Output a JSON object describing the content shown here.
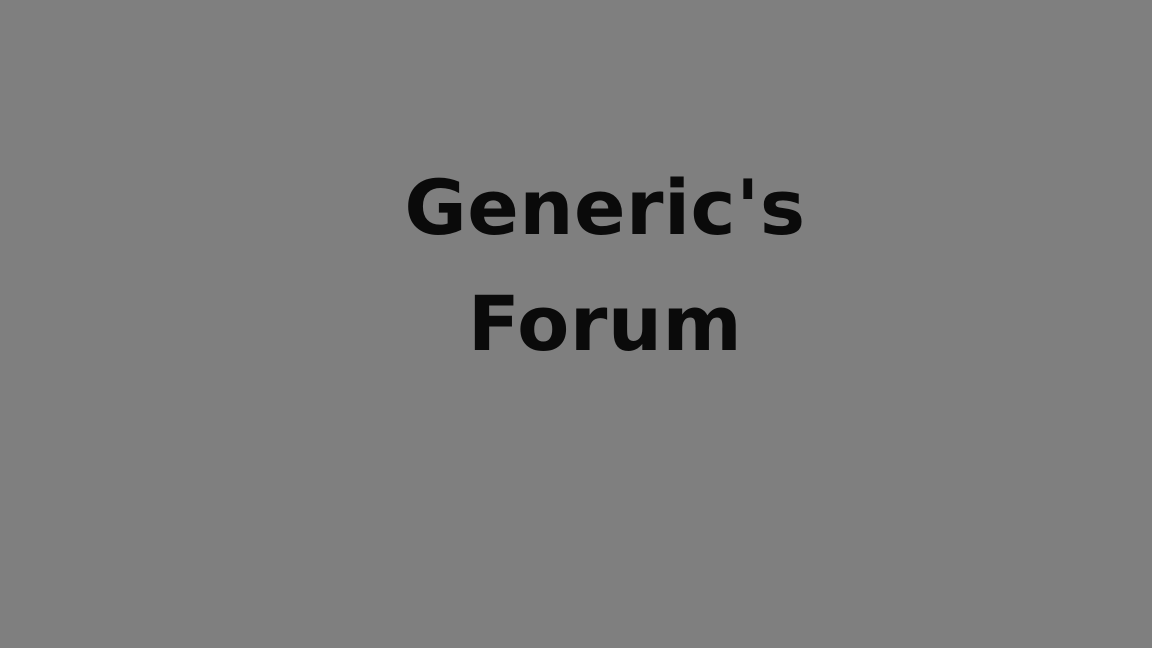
{
  "title": {
    "line1": "Generic's",
    "line2": "Forum"
  },
  "colors": {
    "background": "#7f7f7f",
    "text": "#0a0a0a"
  }
}
